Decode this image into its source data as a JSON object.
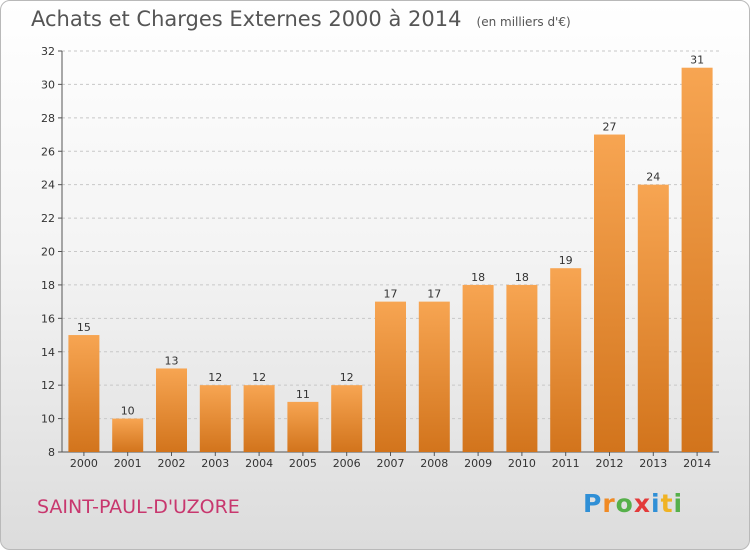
{
  "title": {
    "main": "Achats et Charges Externes 2000 à 2014",
    "unit": "(en milliers d'€)"
  },
  "commune": "SAINT-PAUL-D'UZORE",
  "logo": {
    "letters": [
      "P",
      "r",
      "o",
      "x",
      "i",
      "t",
      "i"
    ]
  },
  "colors": {
    "bar_top": "#f7a552",
    "bar_bottom": "#d2741c",
    "grid": "#c8c8c8",
    "commune_text": "#c8376e"
  },
  "chart_data": {
    "type": "bar",
    "title": "Achats et Charges Externes 2000 à 2014",
    "subtitle": "(en milliers d'€)",
    "xlabel": "",
    "ylabel": "",
    "categories": [
      "2000",
      "2001",
      "2002",
      "2003",
      "2004",
      "2005",
      "2006",
      "2007",
      "2008",
      "2009",
      "2010",
      "2011",
      "2012",
      "2013",
      "2014"
    ],
    "values": [
      15,
      10,
      13,
      12,
      12,
      11,
      12,
      17,
      17,
      18,
      18,
      19,
      27,
      24,
      31
    ],
    "ylim": [
      8,
      32
    ],
    "yticks": [
      8,
      10,
      12,
      14,
      16,
      18,
      20,
      22,
      24,
      26,
      28,
      30,
      32
    ],
    "grid": true
  }
}
